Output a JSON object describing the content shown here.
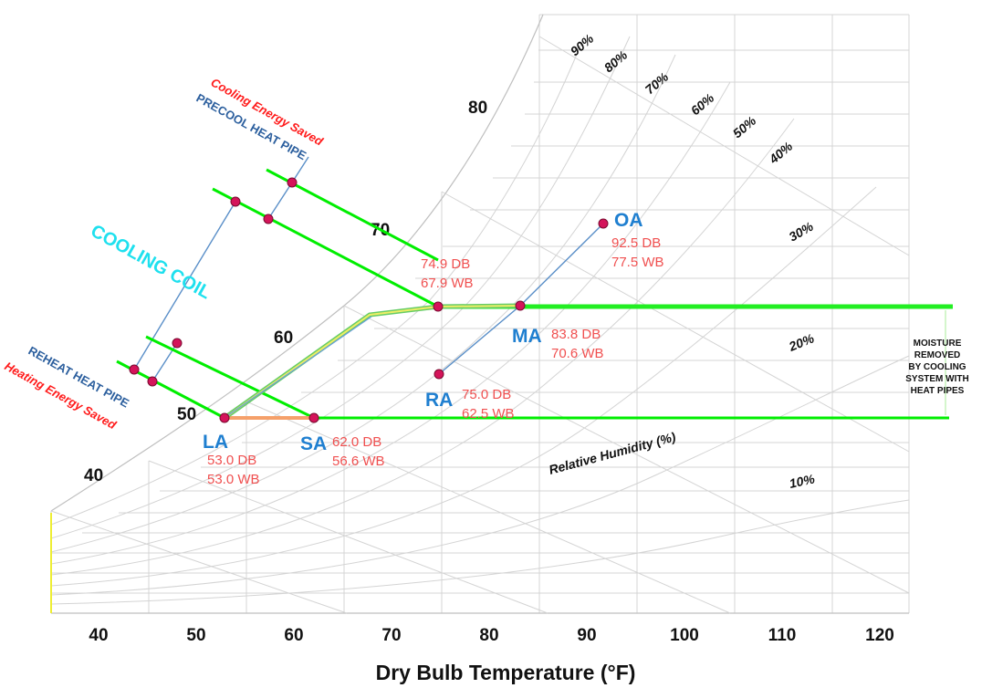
{
  "x_axis": {
    "title": "Dry Bulb Temperature (°F)",
    "ticks": [
      "40",
      "50",
      "60",
      "70",
      "80",
      "90",
      "100",
      "110",
      "120"
    ]
  },
  "wet_bulb_labels": [
    "40",
    "50",
    "60",
    "70",
    "80"
  ],
  "rh_labels": [
    "90%",
    "80%",
    "70%",
    "60%",
    "50%",
    "40%",
    "30%",
    "20%",
    "10%"
  ],
  "rh_axis_label": "Relative Humidity (%)",
  "points": {
    "oa": {
      "name": "OA",
      "db": "92.5 DB",
      "wb": "77.5 WB"
    },
    "ma": {
      "name": "MA",
      "db": "83.8 DB",
      "wb": "70.6 WB"
    },
    "ra": {
      "name": "RA",
      "db": "75.0 DB",
      "wb": "62.5 WB"
    },
    "la": {
      "name": "LA",
      "db": "53.0 DB",
      "wb": "53.0 WB"
    },
    "sa": {
      "name": "SA",
      "db": "62.0 DB",
      "wb": "56.6 WB"
    },
    "coil": {
      "db": "74.9 DB",
      "wb": "67.9 WB"
    }
  },
  "labels": {
    "cooling_saved": "Cooling Energy Saved",
    "precool": "PRECOOL HEAT PIPE",
    "cooling_coil": "COOLING COIL",
    "reheat": "REHEAT HEAT PIPE",
    "heating_saved": "Heating Energy Saved",
    "moisture": [
      "MOISTURE",
      "REMOVED",
      "BY COOLING",
      "SYSTEM WITH",
      "HEAT PIPES"
    ]
  },
  "colors": {
    "process_line": "#00ee00",
    "point_marker": "#d4145a",
    "point_label": "#1f7fd0",
    "point_values": "#f05050"
  }
}
